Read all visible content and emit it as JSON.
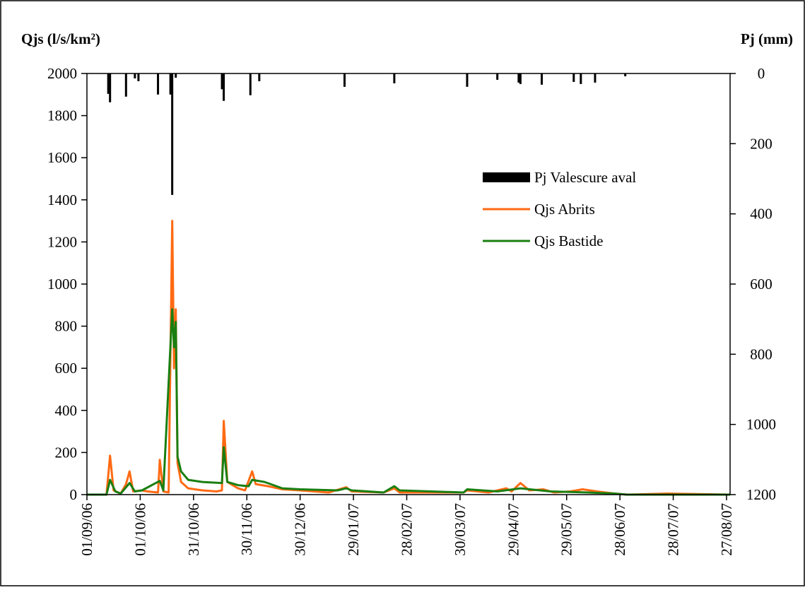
{
  "chart_data": {
    "type": "line",
    "y_label": "Qjs (l/s/km²)",
    "y2_label": "Pj (mm)",
    "xlim": [
      "01/09/06",
      "29/08/07"
    ],
    "xticks": [
      "01/09/06",
      "01/10/06",
      "31/10/06",
      "30/11/06",
      "30/12/06",
      "29/01/07",
      "28/02/07",
      "30/03/07",
      "29/04/07",
      "29/05/07",
      "28/06/07",
      "28/07/07",
      "27/08/07"
    ],
    "ylim": [
      0,
      2000
    ],
    "yticks": [
      0,
      200,
      400,
      600,
      800,
      1000,
      1200,
      1400,
      1600,
      1800,
      2000
    ],
    "y2lim": [
      1200,
      0
    ],
    "y2ticks": [
      0,
      200,
      400,
      600,
      800,
      1000,
      1200
    ],
    "grid": false,
    "legend": "upper right",
    "series": [
      {
        "name": "Pj Valescure aval",
        "type": "bar",
        "axis": "y2",
        "color": "#000000",
        "x": [
          "13/09/06",
          "14/09/06",
          "23/09/06",
          "28/09/06",
          "30/09/06",
          "11/10/06",
          "18/10/06",
          "19/10/06",
          "21/10/06",
          "16/11/06",
          "17/11/06",
          "02/12/06",
          "07/12/06",
          "24/01/07",
          "21/02/07",
          "03/04/07",
          "20/04/07",
          "02/05/07",
          "03/05/07",
          "15/05/07",
          "02/06/07",
          "06/06/07",
          "14/06/07",
          "01/07/07"
        ],
        "values": [
          58,
          82,
          66,
          14,
          22,
          60,
          60,
          346,
          12,
          45,
          78,
          62,
          22,
          38,
          28,
          38,
          18,
          26,
          30,
          32,
          24,
          30,
          26,
          8
        ]
      },
      {
        "name": "Qjs Abrits",
        "type": "line",
        "color": "#ff6a13",
        "x": [
          "01/09/06",
          "12/09/06",
          "14/09/06",
          "16/09/06",
          "20/09/06",
          "23/09/06",
          "25/09/06",
          "27/09/06",
          "02/10/06",
          "05/10/06",
          "11/10/06",
          "12/10/06",
          "14/10/06",
          "17/10/06",
          "19/10/06",
          "20/10/06",
          "21/10/06",
          "22/10/06",
          "24/10/06",
          "28/10/06",
          "05/11/06",
          "13/11/06",
          "16/11/06",
          "17/11/06",
          "19/11/06",
          "25/11/06",
          "29/11/06",
          "03/12/06",
          "05/12/06",
          "12/12/06",
          "20/12/06",
          "30/12/06",
          "15/01/07",
          "25/01/07",
          "28/01/07",
          "15/02/07",
          "21/02/07",
          "24/02/07",
          "01/04/07",
          "03/04/07",
          "15/04/07",
          "25/04/07",
          "28/04/07",
          "03/05/07",
          "08/05/07",
          "16/05/07",
          "22/05/07",
          "31/05/07",
          "07/06/07",
          "15/06/07",
          "20/06/07",
          "25/06/07",
          "02/07/07",
          "25/07/07",
          "29/08/07"
        ],
        "values": [
          0,
          0,
          185,
          20,
          5,
          50,
          110,
          15,
          20,
          15,
          10,
          165,
          15,
          10,
          1300,
          600,
          880,
          150,
          60,
          30,
          20,
          15,
          20,
          350,
          60,
          30,
          20,
          110,
          50,
          40,
          25,
          20,
          10,
          35,
          15,
          10,
          30,
          10,
          10,
          20,
          10,
          30,
          15,
          55,
          20,
          25,
          10,
          15,
          25,
          15,
          10,
          5,
          0,
          5,
          0
        ]
      },
      {
        "name": "Qjs Bastide",
        "type": "line",
        "color": "#1a7f12",
        "x": [
          "01/09/06",
          "12/09/06",
          "14/09/06",
          "17/09/06",
          "20/09/06",
          "25/09/06",
          "28/09/06",
          "02/10/06",
          "12/10/06",
          "14/10/06",
          "19/10/06",
          "20/10/06",
          "21/10/06",
          "22/10/06",
          "24/10/06",
          "28/10/06",
          "05/11/06",
          "16/11/06",
          "17/11/06",
          "19/11/06",
          "25/11/06",
          "01/12/06",
          "03/12/06",
          "10/12/06",
          "20/12/06",
          "30/12/06",
          "20/01/07",
          "25/01/07",
          "28/01/07",
          "15/02/07",
          "21/02/07",
          "24/02/07",
          "01/04/07",
          "03/04/07",
          "20/04/07",
          "03/05/07",
          "20/05/07",
          "10/06/07",
          "25/06/07",
          "02/07/07",
          "29/08/07"
        ],
        "values": [
          0,
          0,
          70,
          15,
          5,
          55,
          15,
          20,
          65,
          20,
          880,
          700,
          820,
          180,
          110,
          70,
          60,
          55,
          225,
          60,
          45,
          40,
          70,
          60,
          30,
          25,
          20,
          30,
          20,
          10,
          40,
          20,
          10,
          25,
          15,
          30,
          15,
          10,
          5,
          0,
          0
        ]
      }
    ]
  }
}
